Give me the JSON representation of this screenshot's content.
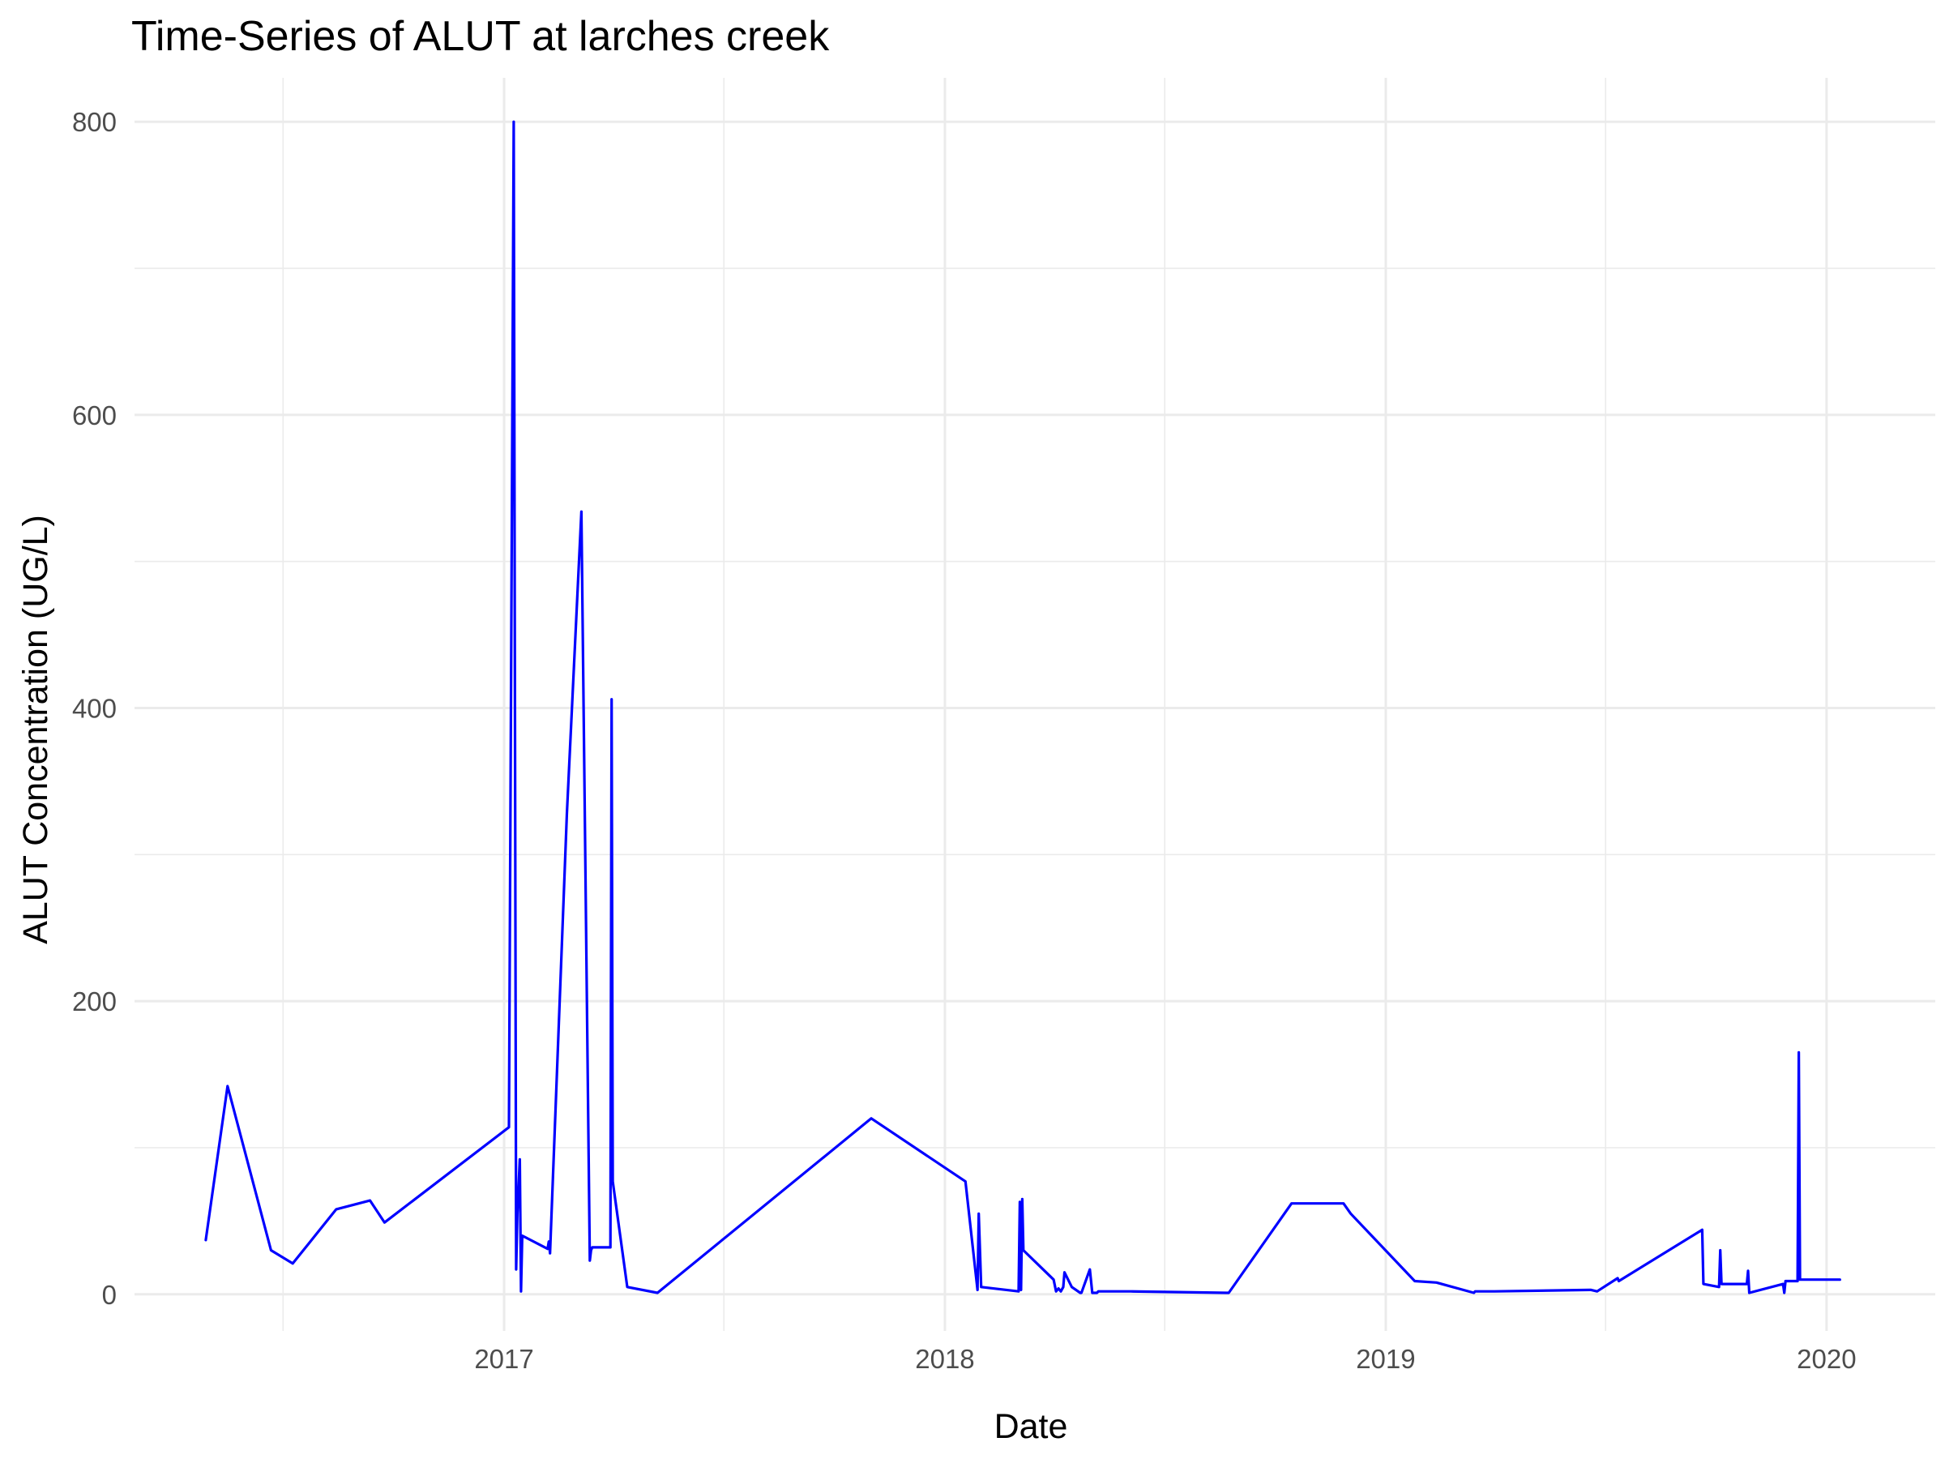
{
  "chart_data": {
    "type": "line",
    "title": "Time-Series of ALUT at larches creek",
    "xlabel": "Date",
    "ylabel": "ALUT Concentration (UG/L)",
    "x_ticks": [
      "2017",
      "2018",
      "2019",
      "2020"
    ],
    "y_ticks": [
      "0",
      "200",
      "400",
      "600",
      "800"
    ],
    "xlim": [
      "2016-03-01",
      "2020-03-31"
    ],
    "ylim": [
      -25,
      830
    ],
    "grid": true,
    "legend": "none",
    "colors": {
      "line": "#0000ff",
      "grid": "#ebebeb",
      "tick_text": "#4d4d4d"
    },
    "series": [
      {
        "x": [
          "2016-04-29",
          "2016-05-17",
          "2016-06-22",
          "2016-07-10",
          "2016-08-15",
          "2016-09-12",
          "2016-09-24",
          "2017-01-05",
          "2017-01-09",
          "2017-01-11",
          "2017-01-12",
          "2017-01-14",
          "2017-01-15",
          "2017-01-16",
          "2017-02-06",
          "2017-02-07",
          "2017-02-08",
          "2017-02-22",
          "2017-03-06",
          "2017-03-13",
          "2017-03-14",
          "2017-03-15",
          "2017-03-30",
          "2017-03-31",
          "2017-04-01",
          "2017-04-13",
          "2017-05-08",
          "2017-11-01",
          "2018-01-18",
          "2018-01-28",
          "2018-01-29",
          "2018-01-31",
          "2018-03-03",
          "2018-03-04",
          "2018-03-05",
          "2018-03-06",
          "2018-03-07",
          "2018-04-01",
          "2018-04-03",
          "2018-04-05",
          "2018-04-07",
          "2018-04-09",
          "2018-04-10",
          "2018-04-16",
          "2018-04-23",
          "2018-04-24",
          "2018-05-01",
          "2018-05-03",
          "2018-05-04",
          "2018-05-06",
          "2018-05-07",
          "2018-05-08",
          "2018-06-04",
          "2018-08-22",
          "2018-08-23",
          "2018-08-24",
          "2018-10-15",
          "2018-11-27",
          "2018-12-03",
          "2019-01-25",
          "2019-02-12",
          "2019-03-15",
          "2019-03-16",
          "2019-04-01",
          "2019-06-19",
          "2019-06-20",
          "2019-06-25",
          "2019-07-12",
          "2019-07-13",
          "2019-09-20",
          "2019-09-21",
          "2019-10-04",
          "2019-10-05",
          "2019-10-06",
          "2019-10-27",
          "2019-10-28",
          "2019-10-29",
          "2019-11-26",
          "2019-11-27",
          "2019-11-28",
          "2019-12-08",
          "2019-12-09",
          "2019-12-10",
          "2020-01-11",
          "2020-01-12"
        ],
        "y": [
          37,
          142,
          30,
          21,
          58,
          64,
          49,
          114,
          800,
          17,
          55,
          92,
          2,
          40,
          31,
          36,
          28,
          328,
          534,
          23,
          30,
          32,
          32,
          406,
          77,
          5,
          1,
          120,
          77,
          3,
          55,
          5,
          2,
          63,
          3,
          65,
          30,
          10,
          2,
          4,
          2,
          5,
          15,
          5,
          1,
          1,
          17,
          1,
          1,
          1,
          1,
          2,
          2,
          1,
          1,
          1,
          62,
          62,
          55,
          9,
          8,
          1,
          2,
          2,
          3,
          3,
          2,
          11,
          9,
          44,
          7,
          5,
          30,
          7,
          7,
          16,
          1,
          7,
          1,
          9,
          9,
          165,
          10,
          10,
          10
        ],
        "color": "#0000ff"
      }
    ]
  }
}
